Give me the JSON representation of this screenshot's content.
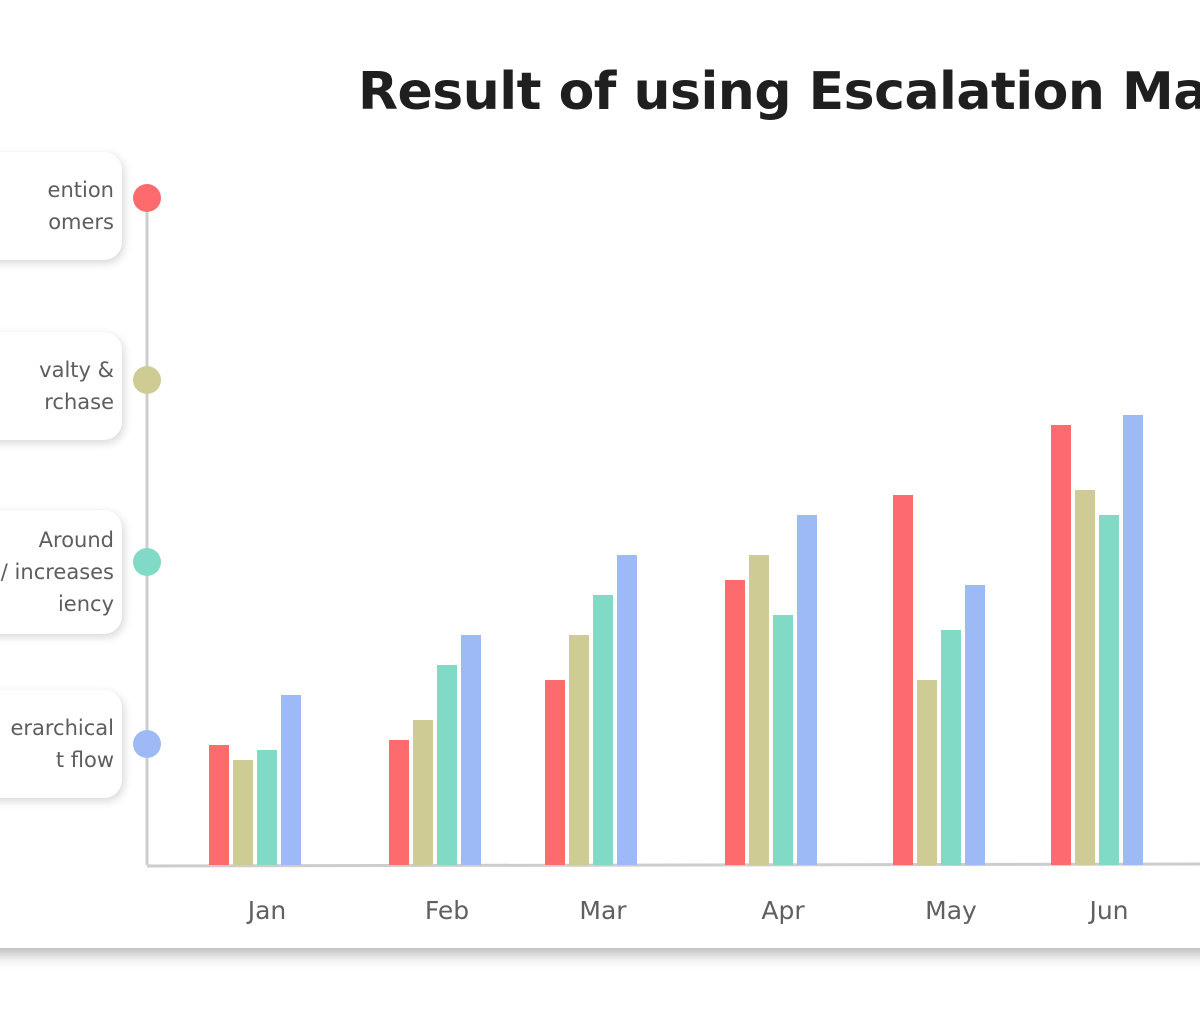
{
  "chart_data": {
    "type": "bar",
    "title": "Result of using Escalation Ma",
    "categories": [
      "Jan",
      "Feb",
      "Mar",
      "Apr",
      "May",
      "Jun"
    ],
    "series": [
      {
        "name": "ention\nomers",
        "color": "#fd6b6e",
        "values": [
          24,
          25,
          37,
          57,
          74,
          88
        ]
      },
      {
        "name": "valty &\nrchase",
        "color": "#cfcb95",
        "values": [
          21,
          29,
          46,
          62,
          37,
          75
        ]
      },
      {
        "name": "Around\n/ increases\niency",
        "color": "#80dac6",
        "values": [
          23,
          40,
          54,
          50,
          47,
          70
        ]
      },
      {
        "name": "erarchical\nt flow",
        "color": "#9dbaf6",
        "values": [
          34,
          46,
          62,
          70,
          56,
          90
        ]
      }
    ],
    "ylim": [
      0,
      100
    ],
    "grid": false,
    "legend_position": "left",
    "axis_color": "#cdcdcd"
  }
}
